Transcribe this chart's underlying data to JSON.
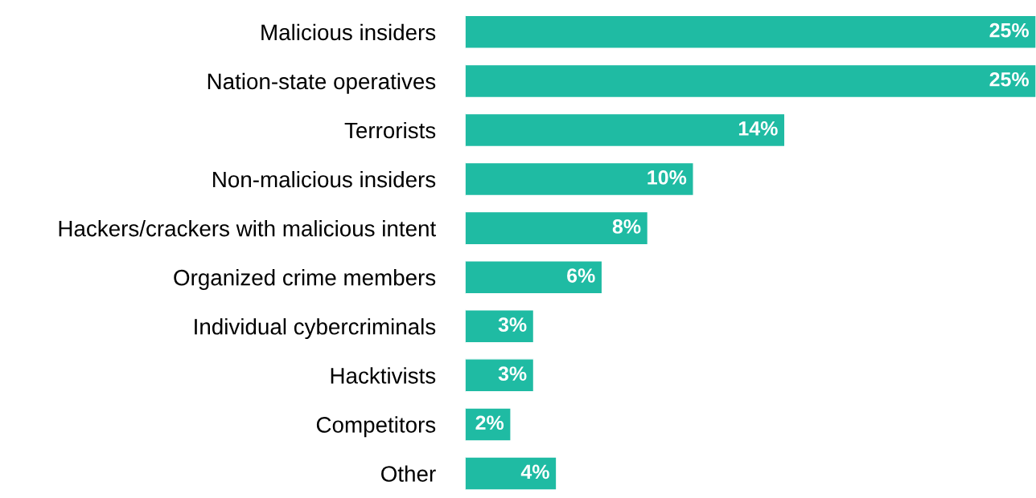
{
  "chart_data": {
    "type": "bar",
    "orientation": "horizontal",
    "categories": [
      "Malicious insiders",
      "Nation-state operatives",
      "Terrorists",
      "Non-malicious insiders",
      "Hackers/crackers with malicious intent",
      "Organized crime members",
      "Individual cybercriminals",
      "Hacktivists",
      "Competitors",
      "Other"
    ],
    "values": [
      25,
      25,
      14,
      10,
      8,
      6,
      3,
      3,
      2,
      4
    ],
    "value_labels": [
      "25%",
      "25%",
      "14%",
      "10%",
      "8%",
      "6%",
      "3%",
      "3%",
      "2%",
      "4%"
    ],
    "color": "#1fbba3",
    "grid": false,
    "legend": false
  }
}
